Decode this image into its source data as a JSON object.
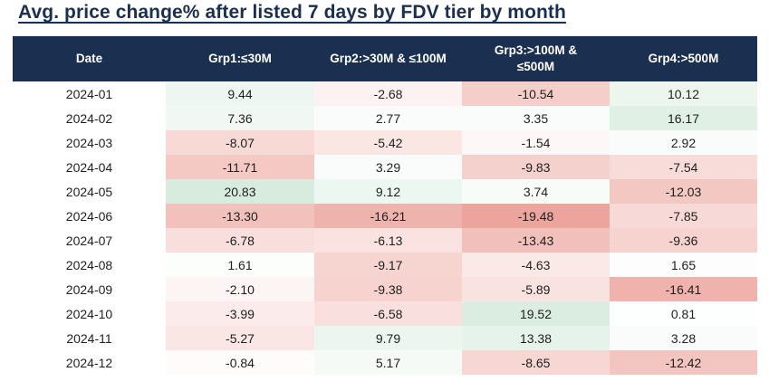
{
  "colors": {
    "header_bg": "#1b2f50",
    "title_text": "#1b2f50",
    "cell_text": "#1f1f1f",
    "heatmap_positive_max": "#d7ecde",
    "heatmap_negative_max": "#eca49c",
    "heatmap_neutral": "#ffffff"
  },
  "chart_data": {
    "type": "heatmap",
    "title": "Avg. price change% after listed 7 days by FDV tier by month",
    "row_header": "Date",
    "columns": [
      "Grp1:≤30M",
      "Grp2:>30M & ≤100M",
      "Grp3:>100M &\n≤500M",
      "Grp4:>500M"
    ],
    "rows": [
      "2024-01",
      "2024-02",
      "2024-03",
      "2024-04",
      "2024-05",
      "2024-06",
      "2024-07",
      "2024-08",
      "2024-09",
      "2024-10",
      "2024-11",
      "2024-12"
    ],
    "values": [
      [
        9.44,
        -2.68,
        -10.54,
        10.12
      ],
      [
        7.36,
        2.77,
        3.35,
        16.17
      ],
      [
        -8.07,
        -5.42,
        -1.54,
        2.92
      ],
      [
        -11.71,
        3.29,
        -9.83,
        -7.54
      ],
      [
        20.83,
        9.12,
        3.74,
        -12.03
      ],
      [
        -13.3,
        -16.21,
        -19.48,
        -7.85
      ],
      [
        -6.78,
        -6.13,
        -13.43,
        -9.36
      ],
      [
        1.61,
        -9.17,
        -4.63,
        1.65
      ],
      [
        -2.1,
        -9.38,
        -5.89,
        -16.41
      ],
      [
        -3.99,
        -6.58,
        19.52,
        0.81
      ],
      [
        -5.27,
        9.79,
        13.38,
        3.28
      ],
      [
        -0.84,
        5.17,
        -8.65,
        -12.42
      ]
    ],
    "value_range": [
      -19.48,
      20.83
    ],
    "value_decimals": 2,
    "color_scale": {
      "negative": "#eca49c",
      "zero": "#ffffff",
      "positive": "#d7ecde",
      "midpoint": 0
    },
    "legend": "none",
    "grid": false
  }
}
